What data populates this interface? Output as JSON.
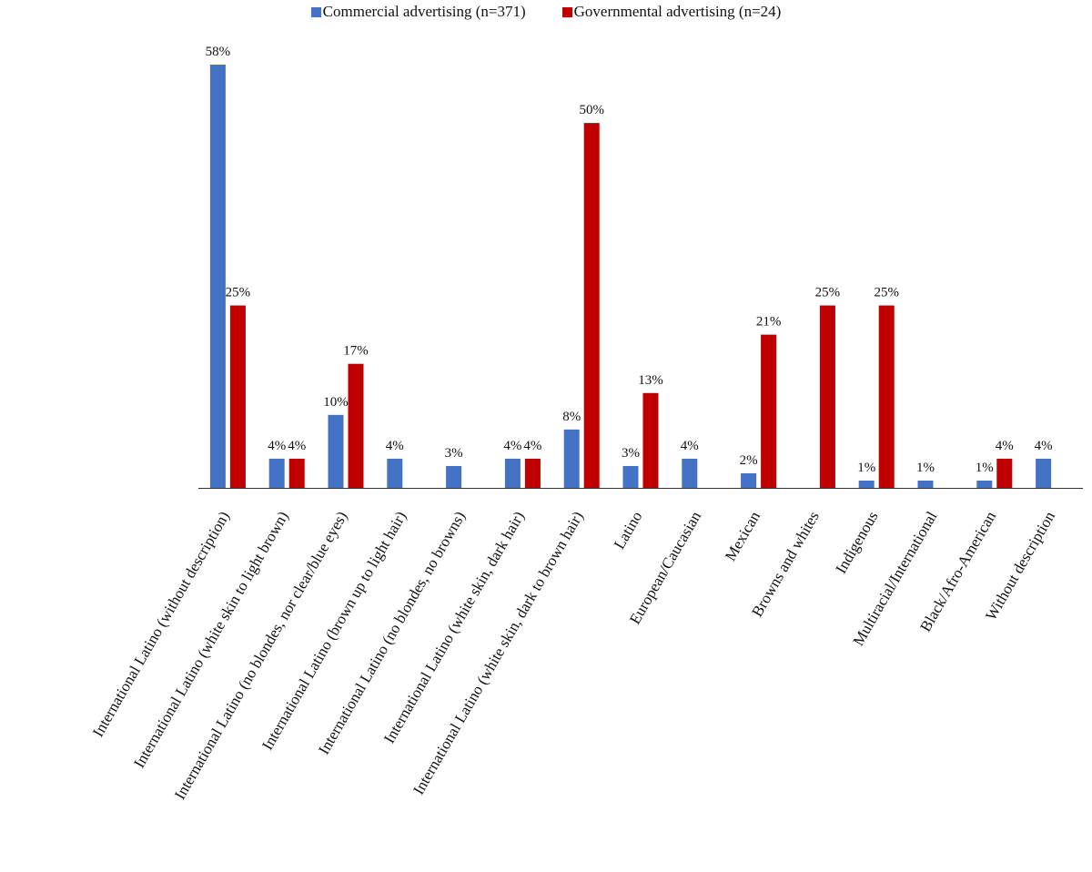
{
  "chart_data": {
    "type": "bar",
    "title": "",
    "xlabel": "",
    "ylabel": "",
    "ylim": [
      0,
      58
    ],
    "grid": false,
    "legend_position": "top-center",
    "categories": [
      "International Latino (without description)",
      "International Latino (white skin to light brown)",
      "International Latino (no blondes, nor clear/blue eyes)",
      "International Latino (brown up to light hair)",
      "International Latino (no blondes, no browns)",
      "International Latino (white skin, dark hair)",
      "International Latino (white skin, dark to brown hair)",
      "Latino",
      "European/Caucasian",
      "Mexican",
      "Browns and whites",
      "Indigenous",
      "Multiracial/International",
      "Black/Afro-American",
      "Without description"
    ],
    "series": [
      {
        "name": "Commercial advertising (n=371)",
        "color": "#4472C4",
        "values": [
          58,
          4,
          10,
          4,
          3,
          4,
          8,
          3,
          4,
          2,
          null,
          1,
          1,
          1,
          4
        ],
        "labels": [
          "58%",
          "4%",
          "10%",
          "4%",
          "3%",
          "4%",
          "8%",
          "3%",
          "4%",
          "2%",
          "",
          "1%",
          "1%",
          "1%",
          "4%"
        ]
      },
      {
        "name": "Governmental advertising (n=24)",
        "color": "#C00000",
        "values": [
          25,
          4,
          17,
          null,
          null,
          4,
          50,
          13,
          null,
          21,
          25,
          25,
          null,
          4,
          null
        ],
        "labels": [
          "25%",
          "4%",
          "17%",
          "",
          "",
          "4%",
          "50%",
          "13%",
          "",
          "21%",
          "25%",
          "25%",
          "",
          "4%",
          ""
        ]
      }
    ]
  }
}
